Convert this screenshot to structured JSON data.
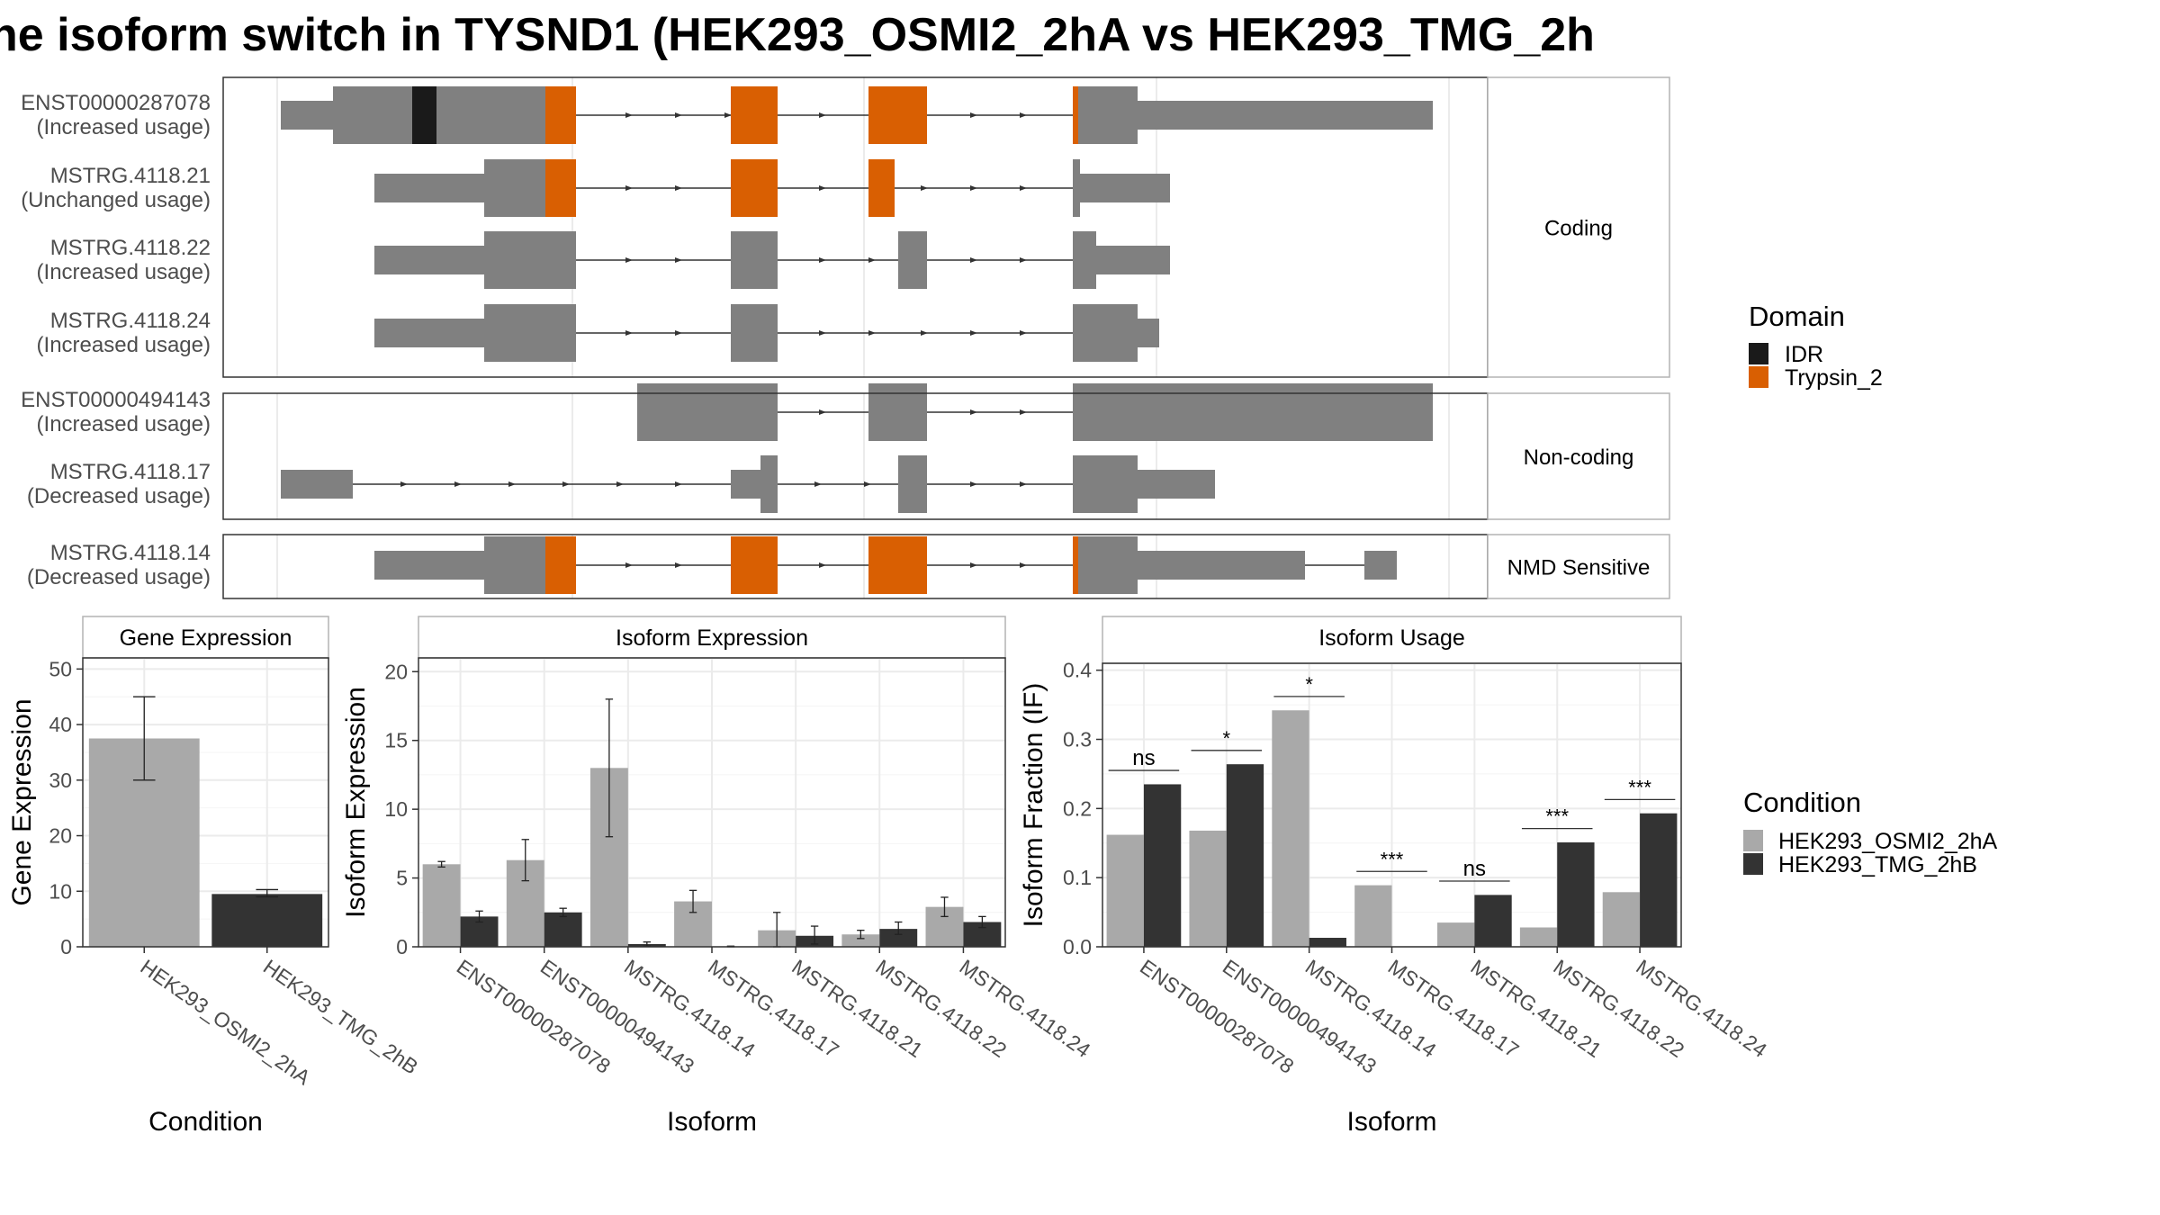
{
  "title": "he isoform switch in TYSND1 (HEK293_OSMI2_2hA vs HEK293_TMG_2h",
  "colors": {
    "exon": "#808080",
    "idr": "#1a1a1a",
    "trypsin": "#d95f02",
    "cond_a": "#a9a9a9",
    "cond_b": "#333333"
  },
  "chart_data": [
    {
      "type": "gene_structure",
      "groups": [
        {
          "label": "Coding",
          "transcripts": [
            {
              "id": "ENST00000287078",
              "usage": "(Increased usage)"
            },
            {
              "id": "MSTRG.4118.21",
              "usage": "(Unchanged usage)"
            },
            {
              "id": "MSTRG.4118.22",
              "usage": "(Increased usage)"
            },
            {
              "id": "MSTRG.4118.24",
              "usage": "(Increased usage)"
            }
          ]
        },
        {
          "label": "Non-coding",
          "transcripts": [
            {
              "id": "ENST00000494143",
              "usage": "(Increased usage)"
            },
            {
              "id": "MSTRG.4118.17",
              "usage": "(Decreased usage)"
            }
          ]
        },
        {
          "label": "NMD Sensitive",
          "transcripts": [
            {
              "id": "MSTRG.4118.14",
              "usage": "(Decreased usage)"
            }
          ]
        }
      ],
      "domain_legend": {
        "title": "Domain",
        "items": [
          "IDR",
          "Trypsin_2"
        ]
      }
    },
    {
      "type": "bar",
      "panel": "Gene Expression",
      "xlabel": "Condition",
      "ylabel": "Gene Expression",
      "ylim": [
        0,
        52
      ],
      "yticks": [
        0,
        10,
        20,
        30,
        40,
        50
      ],
      "categories": [
        "HEK293_OSMI2_2hA",
        "HEK293_TMG_2hB"
      ],
      "values": [
        37.5,
        9.5
      ],
      "err_low": [
        30,
        9
      ],
      "err_high": [
        45,
        10.3
      ]
    },
    {
      "type": "bar",
      "panel": "Isoform Expression",
      "xlabel": "Isoform",
      "ylabel": "Isoform Expression",
      "ylim": [
        0,
        21
      ],
      "yticks": [
        0,
        5,
        10,
        15,
        20
      ],
      "categories": [
        "ENST00000287078",
        "ENST00000494143",
        "MSTRG.4118.14",
        "MSTRG.4118.17",
        "MSTRG.4118.21",
        "MSTRG.4118.22",
        "MSTRG.4118.24"
      ],
      "series": [
        {
          "name": "HEK293_OSMI2_2hA",
          "values": [
            6.0,
            6.3,
            13.0,
            3.3,
            1.2,
            0.9,
            2.9
          ],
          "err_low": [
            5.8,
            4.8,
            8.0,
            2.5,
            0.0,
            0.6,
            2.2
          ],
          "err_high": [
            6.2,
            7.8,
            18.0,
            4.1,
            2.5,
            1.2,
            3.6
          ]
        },
        {
          "name": "HEK293_TMG_2hB",
          "values": [
            2.2,
            2.5,
            0.2,
            0.0,
            0.8,
            1.3,
            1.8
          ],
          "err_low": [
            1.8,
            2.2,
            0.05,
            0.0,
            0.2,
            0.9,
            1.4
          ],
          "err_high": [
            2.6,
            2.8,
            0.35,
            0.05,
            1.5,
            1.8,
            2.2
          ]
        }
      ]
    },
    {
      "type": "bar",
      "panel": "Isoform Usage",
      "xlabel": "Isoform",
      "ylabel": "Isoform Fraction (IF)",
      "ylim": [
        0,
        0.41
      ],
      "yticks": [
        "0.0",
        "0.1",
        "0.2",
        "0.3",
        "0.4"
      ],
      "categories": [
        "ENST00000287078",
        "ENST00000494143",
        "MSTRG.4118.14",
        "MSTRG.4118.17",
        "MSTRG.4118.21",
        "MSTRG.4118.22",
        "MSTRG.4118.24"
      ],
      "series": [
        {
          "name": "HEK293_OSMI2_2hA",
          "values": [
            0.162,
            0.168,
            0.342,
            0.089,
            0.035,
            0.028,
            0.079
          ]
        },
        {
          "name": "HEK293_TMG_2hB",
          "values": [
            0.235,
            0.264,
            0.013,
            0.0,
            0.075,
            0.151,
            0.193
          ]
        }
      ],
      "significance": [
        "ns",
        "*",
        "*",
        "***",
        "ns",
        "***",
        "***"
      ]
    }
  ],
  "condition_legend": {
    "title": "Condition",
    "items": [
      "HEK293_OSMI2_2hA",
      "HEK293_TMG_2hB"
    ]
  }
}
